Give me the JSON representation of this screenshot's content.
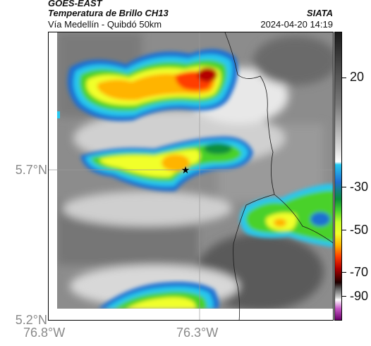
{
  "header": {
    "satellite": "GOES-EAST",
    "product": "Temperatura de Brillo CH13",
    "source": "SIATA",
    "region": "Vía Medellín - Quibdó 50km",
    "datetime": "2024-04-20 14:19"
  },
  "axes": {
    "lat_labels": [
      "5.7°N",
      "5.2°N"
    ],
    "lon_labels": [
      "76.8°W",
      "76.3°W"
    ]
  },
  "colorbar": {
    "tick_labels": [
      "20",
      "-30",
      "-50",
      "-70",
      "-90"
    ],
    "unit_hint": "",
    "stops": [
      "#2a2a2a",
      "#7a7a7a",
      "#f2f2f2",
      "#28c8f0",
      "#1f6fd2",
      "#0a8f3a",
      "#49d12c",
      "#f1ff2a",
      "#ffb400",
      "#ff3c00",
      "#b40000",
      "#1e0000",
      "#b4b4b4",
      "#c85ac8",
      "#6a006a"
    ]
  },
  "marker": {
    "name": "star-marker"
  }
}
